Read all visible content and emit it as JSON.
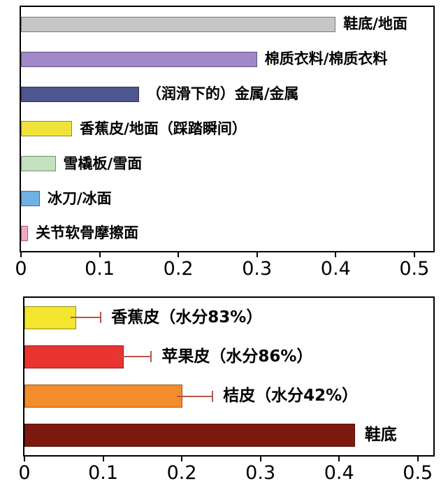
{
  "chart_data": [
    {
      "type": "bar",
      "orientation": "horizontal",
      "title": "",
      "xlabel": "",
      "ylabel": "",
      "xlim": [
        0,
        0.5
      ],
      "xtick_values": [
        0,
        0.1,
        0.2,
        0.3,
        0.4,
        0.5
      ],
      "xtick_labels": [
        "0",
        "0.1",
        "0.2",
        "0.3",
        "0.4",
        "0.5"
      ],
      "grid": false,
      "legend": "none",
      "bars": [
        {
          "label": "鞋底/地面",
          "value": 0.4,
          "color": "#c6c6c6"
        },
        {
          "label": "棉质衣料/棉质衣料",
          "value": 0.3,
          "color": "#a287c9"
        },
        {
          "label": "（润滑下的）金属/金属",
          "value": 0.15,
          "color": "#4d568e"
        },
        {
          "label": "香蕉皮/地面（踩踏瞬间）",
          "value": 0.065,
          "color": "#efe339"
        },
        {
          "label": "雪橇板/雪面",
          "value": 0.044,
          "color": "#c2e2bd"
        },
        {
          "label": "冰刀/冰面",
          "value": 0.024,
          "color": "#6fb1e2"
        },
        {
          "label": "关节软骨摩擦面",
          "value": 0.009,
          "color": "#f2a8c4"
        }
      ]
    },
    {
      "type": "bar",
      "orientation": "horizontal",
      "title": "",
      "xlabel": "",
      "ylabel": "",
      "xlim": [
        0,
        0.5
      ],
      "xtick_values": [
        0,
        0.1,
        0.2,
        0.3,
        0.4,
        0.5
      ],
      "xtick_labels": [
        "0",
        "0.1",
        "0.2",
        "0.3",
        "0.4",
        "0.5"
      ],
      "grid": false,
      "legend": "none",
      "bars": [
        {
          "label": "香蕉皮（水分83%）",
          "value": 0.066,
          "error_max": 0.098,
          "color": "#f4e52f"
        },
        {
          "label": "苹果皮（水分86%）",
          "value": 0.126,
          "error_max": 0.162,
          "color": "#e93430"
        },
        {
          "label": "桔皮（水分42%）",
          "value": 0.201,
          "error_max": 0.24,
          "color": "#f28c2c"
        },
        {
          "label": "鞋底",
          "value": 0.42,
          "color": "#7c1a10"
        }
      ]
    }
  ],
  "style": {
    "error_bar_color": "#b2574d",
    "axis_color": "#000000",
    "text_color": "#000000",
    "background_color": "#ffffff"
  }
}
